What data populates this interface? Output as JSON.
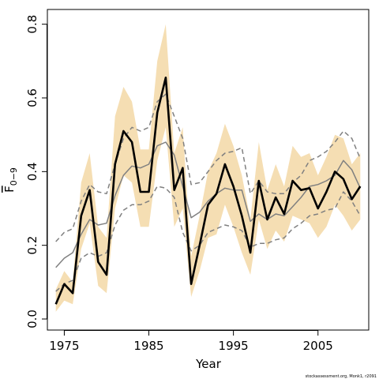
{
  "chart_data": {
    "type": "line",
    "xlabel": "Year",
    "ylabel": "F̅ 0–9",
    "ylabel_main": "F",
    "ylabel_sub": "0−9",
    "xlim": [
      1973,
      2011
    ],
    "ylim": [
      -0.03,
      0.84
    ],
    "x_ticks": [
      1975,
      1985,
      1995,
      2005
    ],
    "y_ticks": [
      0.0,
      0.2,
      0.4,
      0.6,
      0.8
    ],
    "y_tick_labels": [
      "0.0",
      "0.2",
      "0.4",
      "0.6",
      "0.8"
    ],
    "x": [
      1974,
      1975,
      1976,
      1977,
      1978,
      1979,
      1980,
      1981,
      1982,
      1983,
      1984,
      1985,
      1986,
      1987,
      1988,
      1989,
      1990,
      1991,
      1992,
      1993,
      1994,
      1995,
      1996,
      1997,
      1998,
      1999,
      2000,
      2001,
      2002,
      2003,
      2004,
      2005,
      2006,
      2007,
      2008,
      2009,
      2010
    ],
    "series": [
      {
        "role": "estimate",
        "color": "#000000",
        "values": [
          0.04,
          0.095,
          0.07,
          0.28,
          0.35,
          0.155,
          0.12,
          0.42,
          0.51,
          0.48,
          0.345,
          0.345,
          0.56,
          0.655,
          0.35,
          0.41,
          0.095,
          0.2,
          0.31,
          0.34,
          0.42,
          0.36,
          0.28,
          0.18,
          0.375,
          0.27,
          0.33,
          0.285,
          0.375,
          0.35,
          0.355,
          0.3,
          0.345,
          0.4,
          0.38,
          0.325,
          0.36
        ]
      },
      {
        "role": "central-alt",
        "color": "#808080",
        "values": [
          0.14,
          0.165,
          0.18,
          0.23,
          0.27,
          0.255,
          0.26,
          0.335,
          0.39,
          0.415,
          0.41,
          0.42,
          0.47,
          0.48,
          0.445,
          0.36,
          0.275,
          0.29,
          0.32,
          0.34,
          0.355,
          0.35,
          0.35,
          0.265,
          0.285,
          0.27,
          0.285,
          0.28,
          0.305,
          0.33,
          0.36,
          0.365,
          0.375,
          0.39,
          0.43,
          0.405,
          0.355
        ]
      },
      {
        "role": "upper-dashed",
        "color": "#808080",
        "values": [
          0.21,
          0.235,
          0.245,
          0.32,
          0.365,
          0.345,
          0.34,
          0.42,
          0.49,
          0.52,
          0.51,
          0.52,
          0.59,
          0.61,
          0.55,
          0.49,
          0.365,
          0.37,
          0.4,
          0.43,
          0.45,
          0.455,
          0.465,
          0.34,
          0.375,
          0.345,
          0.34,
          0.34,
          0.37,
          0.39,
          0.43,
          0.44,
          0.455,
          0.48,
          0.51,
          0.49,
          0.435
        ]
      },
      {
        "role": "lower-dashed",
        "color": "#808080",
        "values": [
          0.075,
          0.095,
          0.105,
          0.165,
          0.18,
          0.17,
          0.18,
          0.255,
          0.295,
          0.31,
          0.31,
          0.32,
          0.36,
          0.355,
          0.33,
          0.235,
          0.185,
          0.2,
          0.235,
          0.245,
          0.255,
          0.25,
          0.24,
          0.195,
          0.205,
          0.205,
          0.215,
          0.22,
          0.245,
          0.26,
          0.28,
          0.285,
          0.295,
          0.3,
          0.345,
          0.32,
          0.28
        ]
      }
    ],
    "band": {
      "color": "#f5deb3",
      "upper": [
        0.08,
        0.13,
        0.1,
        0.37,
        0.45,
        0.25,
        0.22,
        0.55,
        0.63,
        0.59,
        0.46,
        0.46,
        0.7,
        0.8,
        0.45,
        0.52,
        0.17,
        0.28,
        0.4,
        0.45,
        0.53,
        0.47,
        0.39,
        0.27,
        0.48,
        0.35,
        0.42,
        0.36,
        0.47,
        0.44,
        0.45,
        0.39,
        0.44,
        0.5,
        0.49,
        0.42,
        0.45
      ],
      "lower": [
        0.02,
        0.05,
        0.04,
        0.19,
        0.26,
        0.09,
        0.07,
        0.3,
        0.39,
        0.37,
        0.25,
        0.25,
        0.43,
        0.52,
        0.25,
        0.3,
        0.06,
        0.13,
        0.22,
        0.23,
        0.31,
        0.25,
        0.18,
        0.12,
        0.27,
        0.19,
        0.24,
        0.21,
        0.28,
        0.27,
        0.26,
        0.22,
        0.25,
        0.31,
        0.28,
        0.24,
        0.27
      ]
    },
    "footnote": "stockassessment.org, Monk1, r2091"
  }
}
